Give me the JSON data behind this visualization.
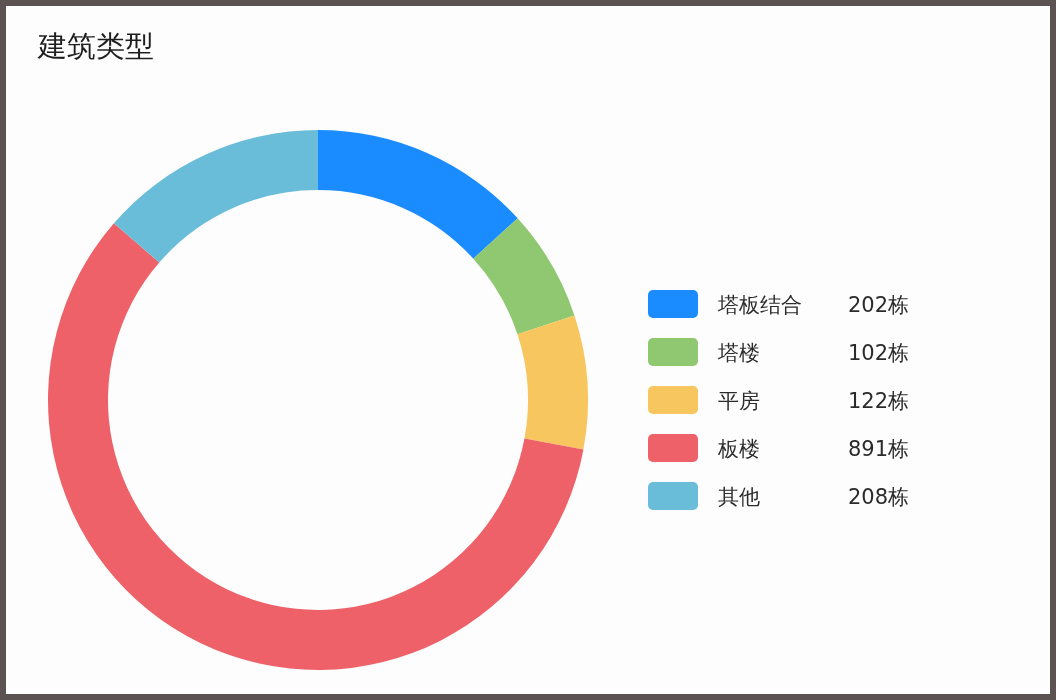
{
  "chart_data": {
    "type": "donut",
    "title": "建筑类型",
    "categories": [
      "塔板结合",
      "塔楼",
      "平房",
      "板楼",
      "其他"
    ],
    "values": [
      202,
      102,
      122,
      891,
      208
    ],
    "colors": [
      "#1a8cff",
      "#8fc870",
      "#f8c65f",
      "#ee6169",
      "#6abdd9"
    ],
    "value_labels": [
      "202栋",
      "102栋",
      "122栋",
      "891栋",
      "208栋"
    ],
    "legend": "right"
  }
}
